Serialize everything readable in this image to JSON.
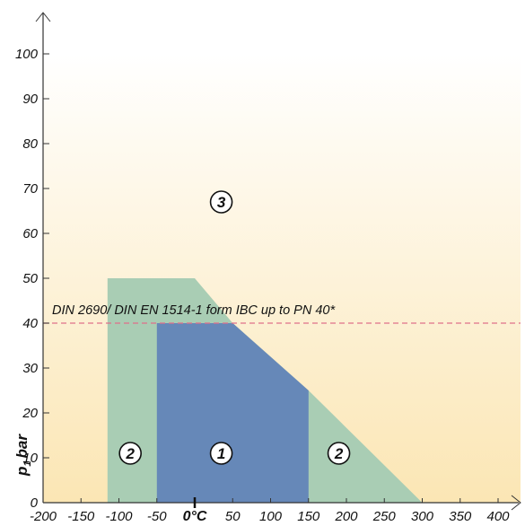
{
  "chart_data": {
    "type": "area",
    "x_ticks": [
      -200,
      -150,
      -100,
      -50,
      50,
      100,
      150,
      200,
      250,
      300,
      350,
      400
    ],
    "zero_tick_label": "0°C",
    "y_ticks": [
      0,
      10,
      20,
      30,
      40,
      50,
      60,
      70,
      80,
      90,
      100
    ],
    "xlim": [
      -200,
      400
    ],
    "ylim": [
      0,
      100
    ],
    "ylabel": "p, bar",
    "ylabel_main": "p",
    "ylabel_sub": "1",
    "ylabel_unit": "bar",
    "annotation": "DIN 2690/ DIN EN 1514-1 form IBC up to PN 40*",
    "reference_line": {
      "y": 40,
      "style": "dashed",
      "color": "#e0708a"
    },
    "regions": [
      {
        "label": "1",
        "color": "#6688b8",
        "polygon": [
          [
            -50,
            0
          ],
          [
            -50,
            40
          ],
          [
            50,
            40
          ],
          [
            150,
            25
          ],
          [
            150,
            0
          ]
        ],
        "label_pos": [
          35,
          11
        ]
      },
      {
        "label": "2",
        "color": "#a9cdb4",
        "polygon": [
          [
            -115,
            0
          ],
          [
            -115,
            50
          ],
          [
            0,
            50
          ],
          [
            50,
            40
          ],
          [
            150,
            25
          ],
          [
            300,
            0
          ]
        ],
        "label_pos": [
          -85,
          11
        ]
      },
      {
        "label": "2",
        "color": "#a9cdb4",
        "polygon": [],
        "label_pos": [
          190,
          11
        ]
      },
      {
        "label": "3",
        "color": "#fbe6b4",
        "polygon": [],
        "label_pos": [
          35,
          67
        ]
      }
    ],
    "background_gradient": [
      "#ffffff",
      "#fbe6b4"
    ],
    "axis_color": "#333333"
  }
}
